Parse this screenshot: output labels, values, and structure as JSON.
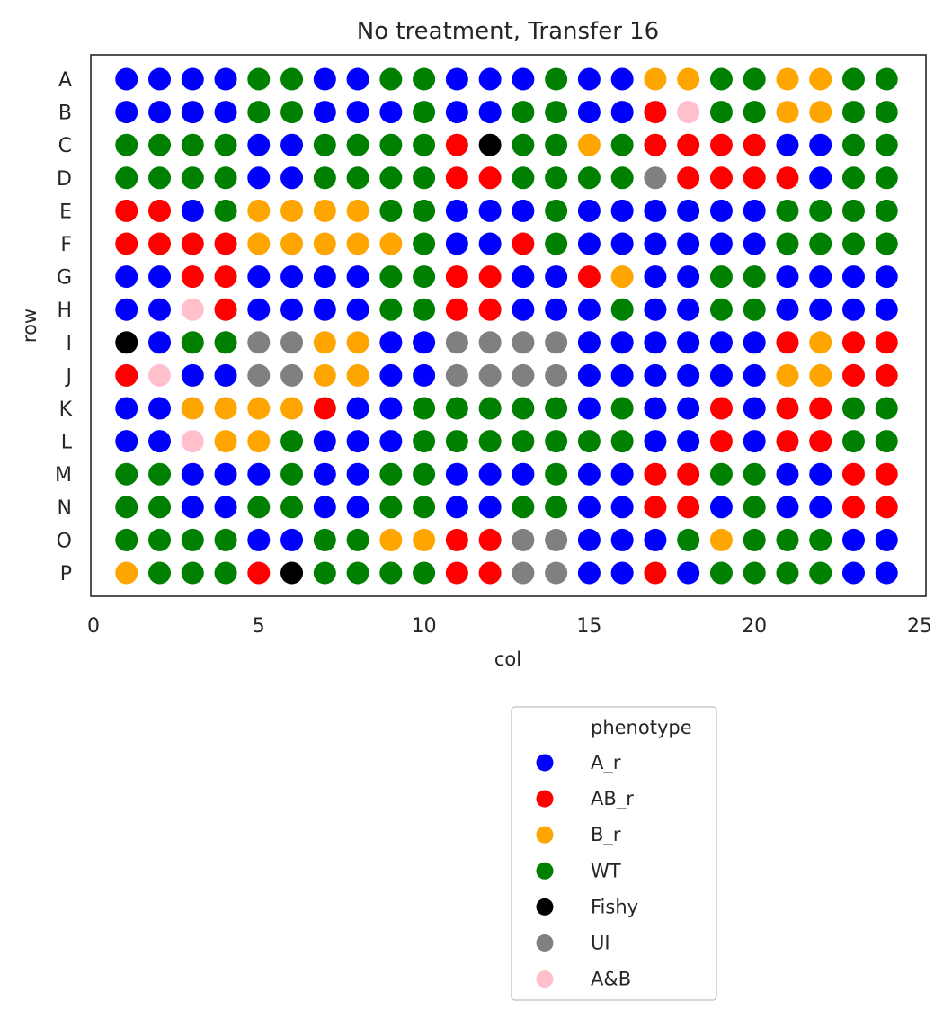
{
  "chart_data": {
    "type": "scatter",
    "title": "No treatment, Transfer 16",
    "xlabel": "col",
    "ylabel": "row",
    "xlim": [
      0,
      25
    ],
    "xticks": [
      0,
      5,
      10,
      15,
      20,
      25
    ],
    "rows": [
      "A",
      "B",
      "C",
      "D",
      "E",
      "F",
      "G",
      "H",
      "I",
      "J",
      "K",
      "L",
      "M",
      "N",
      "O",
      "P"
    ],
    "cols": [
      1,
      2,
      3,
      4,
      5,
      6,
      7,
      8,
      9,
      10,
      11,
      12,
      13,
      14,
      15,
      16,
      17,
      18,
      19,
      20,
      21,
      22,
      23,
      24
    ],
    "grid": false,
    "legend_position": "below",
    "legend": {
      "title": "phenotype",
      "entries": [
        {
          "code": "A",
          "label": "A_r",
          "color": "#0000ff"
        },
        {
          "code": "R",
          "label": "AB_r",
          "color": "#ff0000"
        },
        {
          "code": "B",
          "label": "B_r",
          "color": "#ffa500"
        },
        {
          "code": "W",
          "label": "WT",
          "color": "#008000"
        },
        {
          "code": "F",
          "label": "Fishy",
          "color": "#000000"
        },
        {
          "code": "U",
          "label": "UI",
          "color": "#808080"
        },
        {
          "code": "P",
          "label": "A&B",
          "color": "#ffc0cb"
        }
      ]
    },
    "plate": {
      "A": "AAAAWWAAWWAAAWAABBWWBBWW",
      "B": "AAAAWWAAAWAAWWAARPWWBBWW",
      "C": "WWWWAAWWWWRFWWBWRRRRAAWW",
      "D": "WWWWAAWWWWRRWWWWURRRRAWW",
      "E": "RRAWBBBBWWAAAWAAAAAAWWWW",
      "F": "RRRRBBBBBWAARWAAAAAAWWWW",
      "G": "AARRAAAAWWRRAARBAAWWAAAA",
      "H": "AAPRAAAAWWRRAAAWAAWWAAAA",
      "I": "FAWWUUBBAAUUUUAAAAAARBRR",
      "J": "RPAAUUBBAAUUUUAAAAAABBRR",
      "K": "AABBBBRAAWWWWWAWAARARRWW",
      "L": "AAPBBWAAAWWWWWWWAARARRWW",
      "M": "WWAAAWAAWWAAAWAARRWWAARR",
      "N": "WWAAWWAAWWAAWWAARRAWAARR",
      "O": "WWWWAAWWBBRRUUAAAWBWWWAA",
      "P": "BWWWRFWWWWRRUUAARAWWWWAA"
    }
  }
}
